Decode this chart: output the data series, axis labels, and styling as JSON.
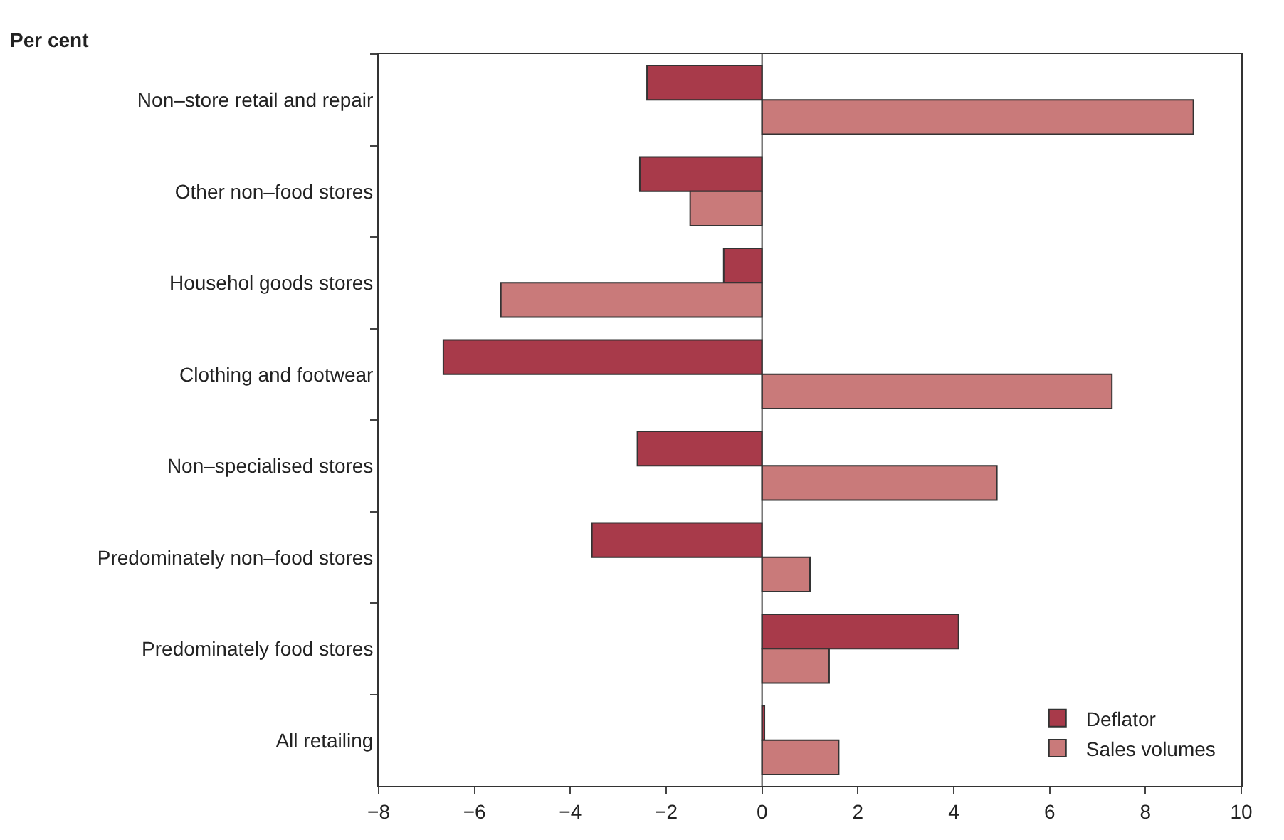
{
  "chart_data": {
    "type": "bar",
    "orientation": "horizontal",
    "xlabel": "Per cent",
    "categories": [
      "Non–store retail and repair",
      "Other non–food stores",
      "Househol goods stores",
      "Clothing and footwear",
      "Non–specialised stores",
      "Predominately non–food stores",
      "Predominately food stores",
      "All retailing"
    ],
    "series": [
      {
        "name": "Deflator",
        "color": "#a83a4a",
        "values": [
          -2.4,
          -2.55,
          -0.8,
          -6.65,
          -2.6,
          -3.55,
          4.1,
          0.05
        ]
      },
      {
        "name": "Sales volumes",
        "color": "#c97a7a",
        "values": [
          9.0,
          -1.5,
          -5.45,
          7.3,
          4.9,
          1.0,
          1.4,
          1.6
        ]
      }
    ],
    "xlim": [
      -8,
      10
    ],
    "xticks": [
      {
        "value": -8,
        "label": "−8"
      },
      {
        "value": -6,
        "label": "−6"
      },
      {
        "value": -4,
        "label": "−4"
      },
      {
        "value": -2,
        "label": "−2"
      },
      0,
      2,
      4,
      6,
      8,
      10
    ],
    "ref_lines": [
      {
        "axis": "x",
        "value": 0,
        "color": "#333333"
      }
    ],
    "legend": "bottom right"
  }
}
